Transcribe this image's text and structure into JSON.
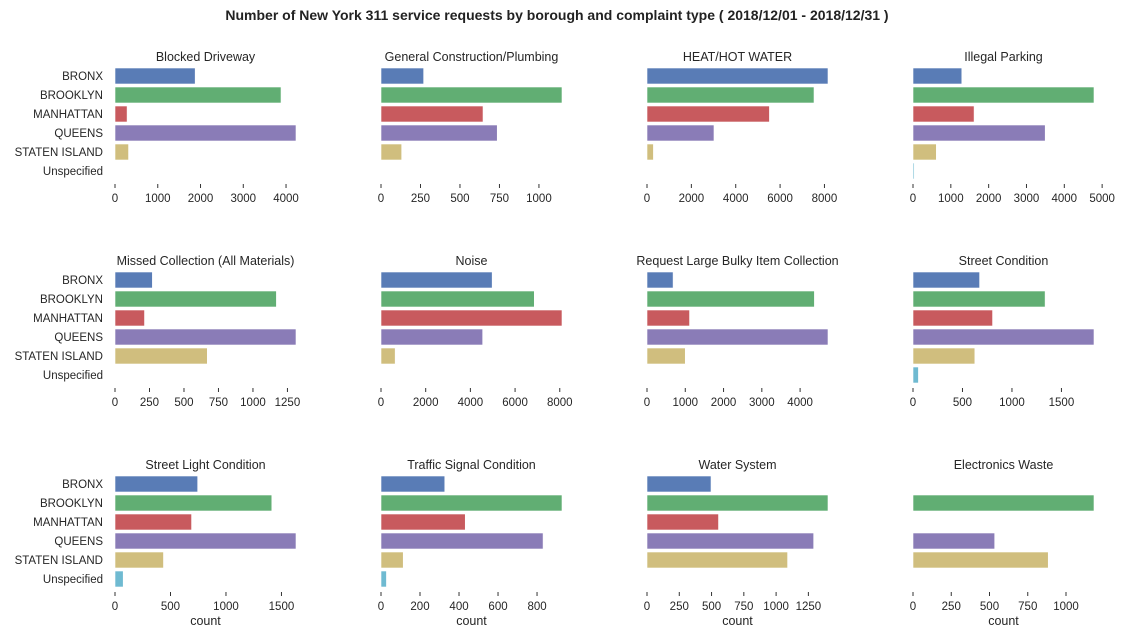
{
  "chart_data": {
    "type": "bar",
    "orientation": "horizontal",
    "title": "Number of New York 311 service requests by borough and complaint type  ( 2018/12/01 - 2018/12/31 )",
    "categories": [
      "BRONX",
      "BROOKLYN",
      "MANHATTAN",
      "QUEENS",
      "STATEN ISLAND",
      "Unspecified"
    ],
    "category_colors": [
      "#4c72b0",
      "#55a868",
      "#c44e52",
      "#8172b2",
      "#ccb974",
      "#64b5cd"
    ],
    "xlabel": "count",
    "grid": false,
    "layout": "3 rows x 4 columns",
    "panels": [
      {
        "title": "Blocked Driveway",
        "values": [
          1875,
          3883,
          283,
          4233,
          317,
          0
        ],
        "xlim": [
          0,
          4233
        ],
        "ticks": [
          0,
          1000,
          2000,
          3000,
          4000
        ]
      },
      {
        "title": "General Construction/Plumbing",
        "values": [
          270,
          1146,
          646,
          736,
          131,
          0
        ],
        "xlim": [
          0,
          1146
        ],
        "ticks": [
          0,
          250,
          500,
          750,
          1000
        ]
      },
      {
        "title": "HEAT/HOT WATER",
        "values": [
          8160,
          7530,
          5520,
          3020,
          290,
          0
        ],
        "xlim": [
          0,
          8160
        ],
        "ticks": [
          0,
          2000,
          4000,
          6000,
          8000
        ]
      },
      {
        "title": "Illegal Parking",
        "values": [
          1290,
          4785,
          1615,
          3495,
          617,
          30
        ],
        "xlim": [
          0,
          4785
        ],
        "ticks": [
          0,
          1000,
          2000,
          3000,
          4000,
          5000
        ]
      },
      {
        "title": "Missed Collection (All Materials)",
        "values": [
          271,
          1170,
          214,
          1312,
          669,
          0
        ],
        "xlim": [
          0,
          1312
        ],
        "ticks": [
          0,
          250,
          500,
          750,
          1000,
          1250
        ]
      },
      {
        "title": "Noise",
        "values": [
          4975,
          6860,
          8100,
          4550,
          634,
          0
        ],
        "xlim": [
          0,
          8100
        ],
        "ticks": [
          0,
          2000,
          4000,
          6000,
          8000
        ]
      },
      {
        "title": "Request Large Bulky Item Collection",
        "values": [
          682,
          4374,
          1112,
          4729,
          1000,
          0
        ],
        "xlim": [
          0,
          4729
        ],
        "ticks": [
          0,
          1000,
          2000,
          3000,
          4000
        ]
      },
      {
        "title": "Street Condition",
        "values": [
          673,
          1335,
          804,
          1829,
          625,
          55
        ],
        "xlim": [
          0,
          1829
        ],
        "ticks": [
          0,
          500,
          1000,
          1500
        ]
      },
      {
        "title": "Street Light Condition",
        "values": [
          745,
          1413,
          690,
          1631,
          437,
          74
        ],
        "xlim": [
          0,
          1631
        ],
        "ticks": [
          0,
          500,
          1000,
          1500
        ]
      },
      {
        "title": "Traffic Signal Condition",
        "values": [
          327,
          928,
          432,
          831,
          114,
          28
        ],
        "xlim": [
          0,
          928
        ],
        "ticks": [
          0,
          200,
          400,
          600,
          800
        ]
      },
      {
        "title": "Water System",
        "values": [
          496,
          1402,
          554,
          1291,
          1089,
          0
        ],
        "xlim": [
          0,
          1402
        ],
        "ticks": [
          0,
          250,
          500,
          750,
          1000,
          1250
        ]
      },
      {
        "title": "Electronics Waste",
        "values": [
          0,
          1183,
          0,
          534,
          884,
          0
        ],
        "xlim": [
          0,
          1183
        ],
        "ticks": [
          0,
          250,
          500,
          750,
          1000
        ]
      }
    ]
  }
}
